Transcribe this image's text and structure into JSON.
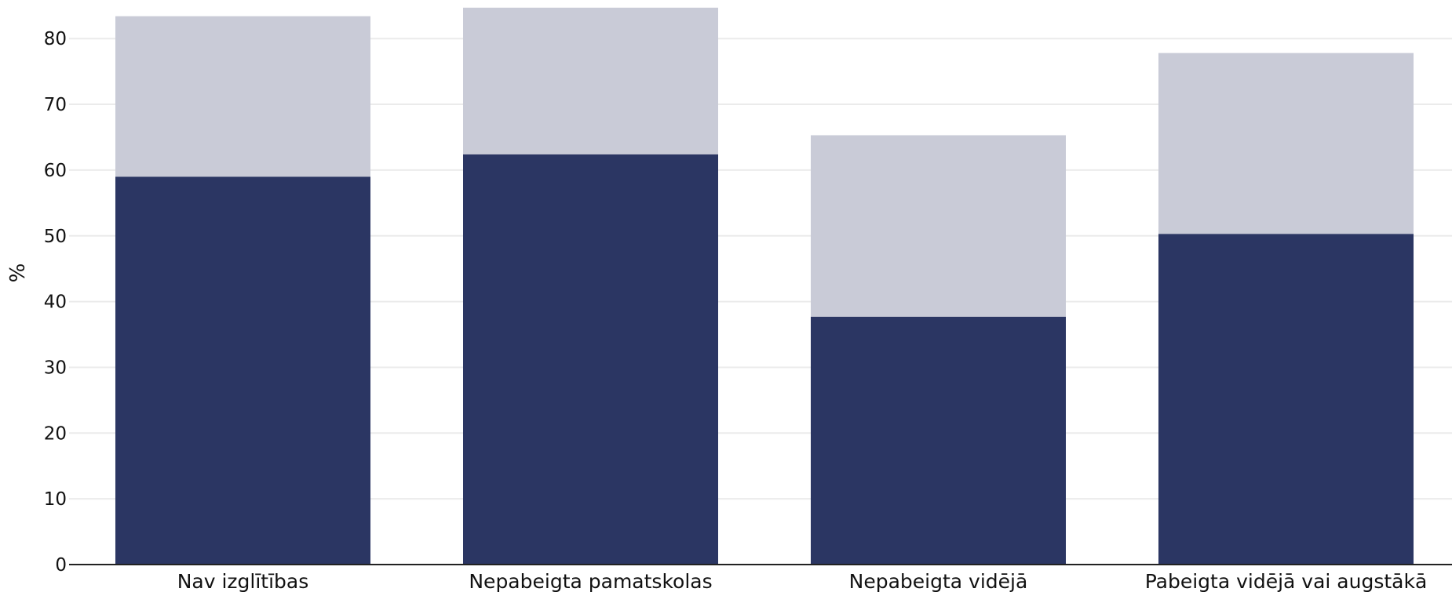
{
  "chart_data": {
    "type": "bar",
    "stacked": true,
    "categories": [
      "Nav izglītības",
      "Nepabeigta pamatskolas",
      "Nepabeigta vidējā",
      "Pabeigta vidējā vai augstākā"
    ],
    "series": [
      {
        "values": [
          59,
          62.4,
          37.7,
          50.3
        ],
        "color": "#2b3663"
      },
      {
        "values": [
          24.4,
          22.3,
          27.6,
          27.5
        ],
        "color": "#c9cbd7"
      }
    ],
    "ylabel": "%",
    "xlabel": "",
    "ylim": [
      0,
      85
    ],
    "yticks": [
      0,
      10,
      20,
      30,
      40,
      50,
      60,
      70,
      80
    ],
    "grid": true,
    "legend": "none"
  }
}
